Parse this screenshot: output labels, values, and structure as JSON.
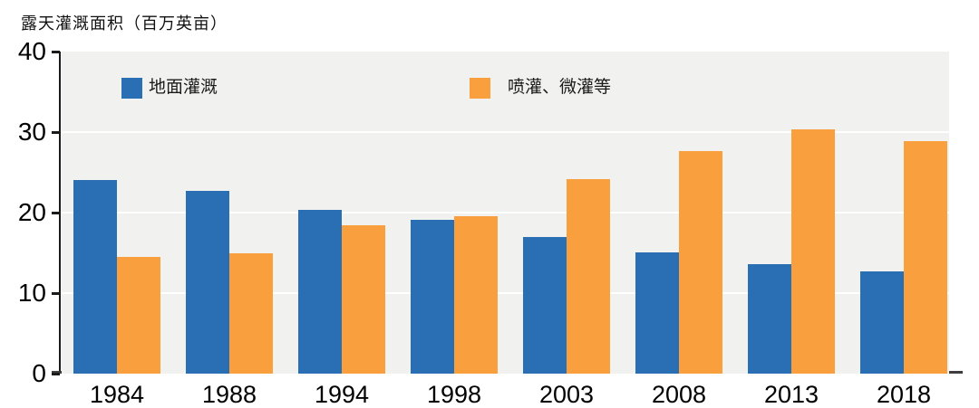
{
  "chart_data": {
    "type": "bar",
    "title": "露天灌溉面积（百万英亩）",
    "categories": [
      "1984",
      "1988",
      "1994",
      "1998",
      "2003",
      "2008",
      "2013",
      "2018"
    ],
    "series": [
      {
        "name": "地面灌溉",
        "color": "#2A6FB3",
        "values": [
          24.0,
          22.7,
          20.3,
          19.1,
          17.0,
          15.1,
          13.6,
          12.7
        ]
      },
      {
        "name": "喷灌、微灌等",
        "color": "#F99F3E",
        "values": [
          14.5,
          15.0,
          18.4,
          19.6,
          24.2,
          27.6,
          30.3,
          28.9
        ]
      }
    ],
    "xlabel": "",
    "ylabel": "露天灌溉面积（百万英亩）",
    "ylim": [
      0,
      40
    ],
    "yticks": [
      0,
      10,
      20,
      30,
      40
    ],
    "grid": true,
    "gridline_color": "#ffffff",
    "plot_background": "#F1F1EF",
    "axis_color": "#1a1a1a",
    "baseline_color": "#3e3e3e",
    "legend_position": "top-inside"
  }
}
